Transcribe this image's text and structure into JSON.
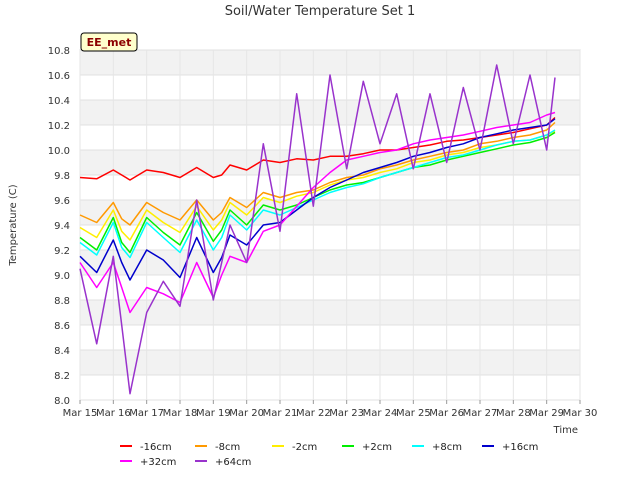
{
  "chart_data": {
    "type": "line",
    "title": "Soil/Water Temperature Set 1",
    "xlabel": "Time",
    "ylabel": "Temperature (C)",
    "badge": "EE_met",
    "x_ticks": [
      "Mar 15",
      "Mar 16",
      "Mar 17",
      "Mar 18",
      "Mar 19",
      "Mar 20",
      "Mar 21",
      "Mar 22",
      "Mar 23",
      "Mar 24",
      "Mar 25",
      "Mar 26",
      "Mar 27",
      "Mar 28",
      "Mar 29",
      "Mar 30"
    ],
    "x_domain_days": [
      15,
      30
    ],
    "y_ticks": [
      "8.0",
      "8.2",
      "8.4",
      "8.6",
      "8.8",
      "9.0",
      "9.2",
      "9.4",
      "9.6",
      "9.8",
      "10.0",
      "10.2",
      "10.4",
      "10.6",
      "10.8"
    ],
    "ylim": [
      8.0,
      10.8
    ],
    "grid": true,
    "legend_position": "bottom",
    "x": [
      15.0,
      15.5,
      16.0,
      16.25,
      16.5,
      17.0,
      17.5,
      18.0,
      18.5,
      19.0,
      19.25,
      19.5,
      20.0,
      20.5,
      21.0,
      21.5,
      22.0,
      22.5,
      23.0,
      23.5,
      24.0,
      24.5,
      25.0,
      25.5,
      26.0,
      26.5,
      27.0,
      27.5,
      28.0,
      28.5,
      29.0,
      29.25
    ],
    "series": [
      {
        "name": "-16cm",
        "color": "#ff0000",
        "values": [
          9.78,
          9.77,
          9.84,
          9.8,
          9.76,
          9.84,
          9.82,
          9.78,
          9.86,
          9.78,
          9.8,
          9.88,
          9.84,
          9.92,
          9.9,
          9.93,
          9.92,
          9.95,
          9.95,
          9.97,
          10.0,
          10.0,
          10.02,
          10.04,
          10.07,
          10.08,
          10.1,
          10.12,
          10.14,
          10.17,
          10.2,
          10.26
        ]
      },
      {
        "name": "-8cm",
        "color": "#ff9900",
        "values": [
          9.48,
          9.42,
          9.58,
          9.45,
          9.4,
          9.58,
          9.5,
          9.44,
          9.6,
          9.44,
          9.5,
          9.62,
          9.54,
          9.66,
          9.62,
          9.66,
          9.68,
          9.74,
          9.78,
          9.8,
          9.85,
          9.88,
          9.92,
          9.95,
          9.98,
          10.0,
          10.05,
          10.07,
          10.1,
          10.12,
          10.16,
          10.22
        ]
      },
      {
        "name": "-2cm",
        "color": "#ffee00",
        "values": [
          9.38,
          9.3,
          9.52,
          9.35,
          9.28,
          9.52,
          9.42,
          9.34,
          9.55,
          9.36,
          9.44,
          9.58,
          9.48,
          9.62,
          9.58,
          9.63,
          9.66,
          9.72,
          9.76,
          9.78,
          9.82,
          9.85,
          9.9,
          9.92,
          9.96,
          9.98,
          10.02,
          10.04,
          10.07,
          10.08,
          10.12,
          10.15
        ]
      },
      {
        "name": "+2cm",
        "color": "#00ee00",
        "values": [
          9.3,
          9.2,
          9.46,
          9.26,
          9.18,
          9.46,
          9.34,
          9.24,
          9.5,
          9.27,
          9.36,
          9.52,
          9.4,
          9.56,
          9.52,
          9.56,
          9.62,
          9.68,
          9.72,
          9.74,
          9.78,
          9.82,
          9.86,
          9.88,
          9.92,
          9.95,
          9.98,
          10.01,
          10.04,
          10.06,
          10.1,
          10.14
        ]
      },
      {
        "name": "+8cm",
        "color": "#00ffff",
        "values": [
          9.26,
          9.16,
          9.42,
          9.22,
          9.14,
          9.42,
          9.3,
          9.18,
          9.44,
          9.2,
          9.3,
          9.48,
          9.36,
          9.52,
          9.48,
          9.54,
          9.6,
          9.66,
          9.7,
          9.73,
          9.78,
          9.82,
          9.86,
          9.9,
          9.94,
          9.96,
          10.0,
          10.04,
          10.07,
          10.08,
          10.12,
          10.16
        ]
      },
      {
        "name": "+16cm",
        "color": "#0000cc",
        "values": [
          9.15,
          9.02,
          9.28,
          9.1,
          8.96,
          9.2,
          9.12,
          8.98,
          9.3,
          9.02,
          9.14,
          9.32,
          9.24,
          9.4,
          9.42,
          9.52,
          9.62,
          9.7,
          9.76,
          9.82,
          9.86,
          9.9,
          9.95,
          9.98,
          10.02,
          10.05,
          10.1,
          10.13,
          10.16,
          10.18,
          10.2,
          10.25
        ]
      },
      {
        "name": "+32cm",
        "color": "#ff00ff",
        "values": [
          9.1,
          8.9,
          9.1,
          8.9,
          8.7,
          8.9,
          8.85,
          8.78,
          9.1,
          8.82,
          9.0,
          9.15,
          9.1,
          9.35,
          9.4,
          9.55,
          9.7,
          9.82,
          9.92,
          9.95,
          9.98,
          10.0,
          10.05,
          10.08,
          10.1,
          10.12,
          10.15,
          10.18,
          10.2,
          10.22,
          10.28,
          10.3
        ]
      },
      {
        "name": "+64cm",
        "color": "#9933cc",
        "values": [
          9.05,
          8.45,
          9.15,
          8.6,
          8.05,
          8.7,
          8.95,
          8.75,
          9.6,
          8.8,
          9.1,
          9.4,
          9.1,
          10.05,
          9.35,
          10.45,
          9.55,
          10.6,
          9.85,
          10.55,
          10.05,
          10.45,
          9.85,
          10.45,
          9.9,
          10.5,
          10.0,
          10.68,
          10.05,
          10.6,
          10.0,
          10.58
        ]
      }
    ]
  }
}
